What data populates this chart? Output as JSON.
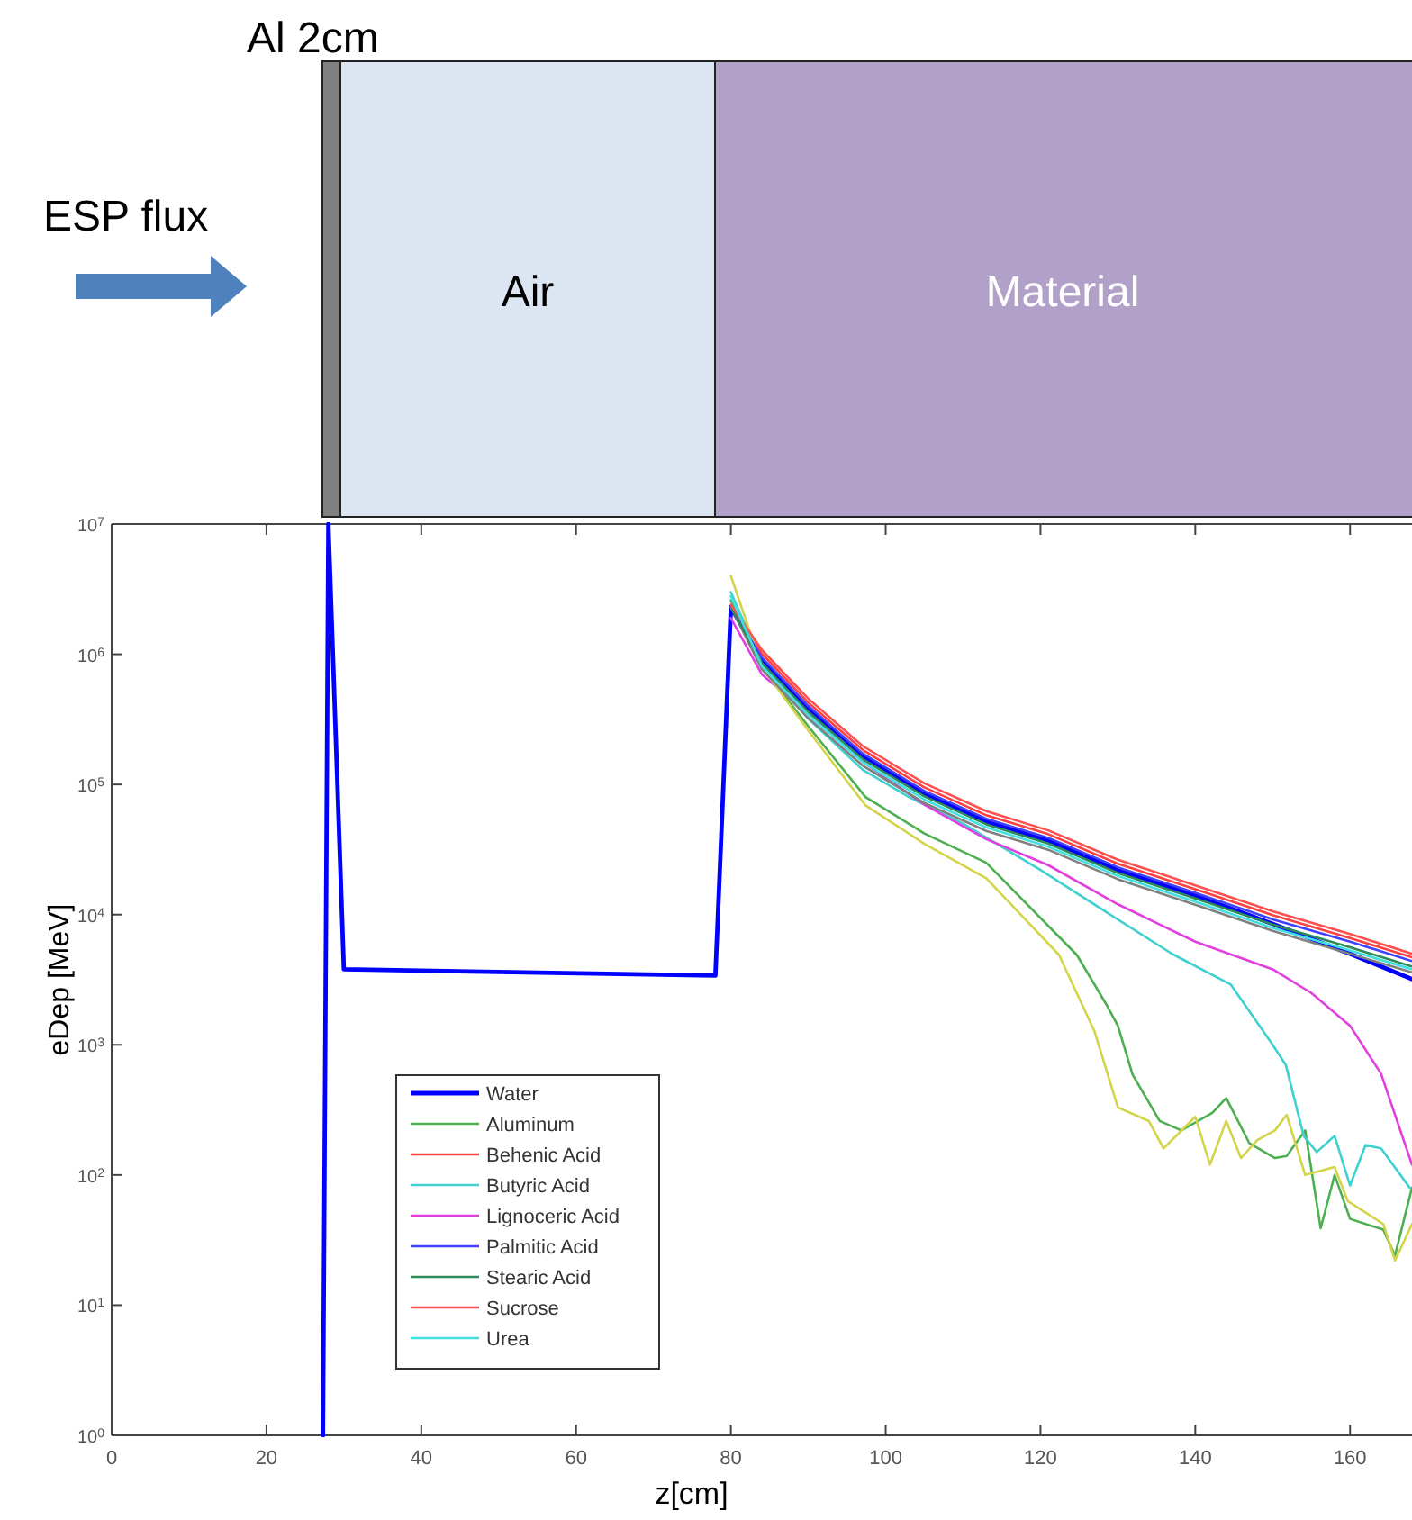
{
  "chart_data": {
    "type": "line",
    "xlabel": "z[cm]",
    "ylabel": "eDep [MeV]",
    "annotations": [
      "Al 2cm",
      "ESP flux",
      "Air",
      "Material"
    ],
    "log": "y",
    "grid": false,
    "legend": "bottom left",
    "xlim": [
      0,
      168
    ],
    "ylim": [
      1,
      10000000
    ],
    "xticks": [
      0,
      20,
      40,
      60,
      80,
      100,
      120,
      140,
      160
    ],
    "yticks": [
      {
        "value": 1,
        "label": "10$^{0}$"
      },
      {
        "value": 10,
        "label": "10$^{1}$"
      },
      {
        "value": 100,
        "label": "10$^{2}$"
      },
      {
        "value": 1000,
        "label": "10$^{3}$"
      },
      {
        "value": 10000,
        "label": "10$^{4}$"
      },
      {
        "value": 100000,
        "label": "10$^{5}$"
      },
      {
        "value": 1000000,
        "label": "10$^{6}$"
      },
      {
        "value": 10000000,
        "label": "10$^{7}$"
      }
    ],
    "x": [
      80,
      84,
      90,
      97,
      105,
      113,
      121,
      130,
      140,
      150,
      160,
      168
    ],
    "series": [
      {
        "name": "Water",
        "color": "#0000ff",
        "x": [
          27.3,
          28,
          30,
          78,
          80,
          84,
          90,
          97,
          105,
          113,
          121,
          130,
          140,
          150,
          160,
          168
        ],
        "values": [
          1,
          10000000,
          3800,
          3400,
          2300000,
          900000,
          380000,
          165000,
          85000,
          52000,
          37000,
          22000,
          14000,
          8500,
          5000,
          3200
        ]
      },
      {
        "name": "Aluminum",
        "color": "#4caf50",
        "x": [
          80,
          84,
          90,
          97.4,
          105,
          113,
          124.7,
          128.6,
          130,
          131.9,
          135.4,
          138.2,
          142.2,
          144,
          147,
          150.3,
          151.8,
          154.2,
          156.2,
          158,
          160,
          164.3,
          165.8,
          168
        ],
        "values": [
          2600000,
          800000,
          280000,
          80000,
          42000,
          25000,
          4900,
          2000,
          1400,
          590,
          260,
          220,
          300,
          390,
          175,
          135,
          140,
          220,
          39,
          100,
          46,
          38,
          24,
          80
        ]
      },
      {
        "name": "Behenic Acid",
        "color": "#ff4040",
        "values": [
          2300000,
          1010000,
          425000,
          185000,
          95000,
          58000,
          41500,
          24600,
          15700,
          9900,
          6600,
          4700
        ]
      },
      {
        "name": "Butyric Acid",
        "color": "#40d0d0",
        "x": [
          80,
          84,
          90,
          97,
          103,
          110,
          120,
          129,
          137,
          144.6,
          150,
          151.7,
          154,
          155.7,
          158,
          160,
          162,
          164,
          167.7
        ],
        "values": [
          3000000,
          850000,
          320000,
          130000,
          80000,
          50000,
          22000,
          10000,
          5000,
          2900,
          1000,
          700,
          200,
          150,
          200,
          83,
          170,
          160,
          80
        ]
      },
      {
        "name": "Lignoceric Acid",
        "color": "#e040e0",
        "x": [
          80,
          84,
          90,
          97,
          105,
          113,
          121,
          130,
          140,
          150,
          155,
          160,
          164,
          168
        ],
        "values": [
          1900000,
          700000,
          350000,
          150000,
          70000,
          38000,
          24000,
          12000,
          6200,
          3800,
          2500,
          1400,
          600,
          120
        ]
      },
      {
        "color": "#d4d44a",
        "x": [
          80,
          84,
          90,
          97.4,
          105,
          113,
          122.4,
          127,
          130,
          134,
          135.9,
          140,
          141.9,
          144,
          145.9,
          148,
          150.3,
          151.8,
          154.2,
          158,
          159.7,
          164.3,
          165.8,
          168
        ],
        "values": [
          4000000,
          800000,
          260000,
          69000,
          35000,
          19000,
          4900,
          1260,
          330,
          260,
          160,
          280,
          120,
          260,
          135,
          185,
          220,
          290,
          100,
          115,
          63,
          42,
          22,
          42
        ]
      },
      {
        "color": "#808080",
        "values": [
          2300000,
          765000,
          323000,
          140000,
          72000,
          44000,
          31500,
          18700,
          11900,
          7500,
          5000,
          3600
        ]
      },
      {
        "name": "Palmitic Acid",
        "color": "#4040ff",
        "values": [
          2300000,
          945000,
          400000,
          173000,
          89000,
          54600,
          38900,
          23100,
          14700,
          9200,
          6200,
          4400
        ]
      },
      {
        "name": "Stearic Acid",
        "color": "#2e8b57",
        "values": [
          2300000,
          855000,
          361000,
          157000,
          81000,
          49400,
          35200,
          20900,
          13300,
          8400,
          5600,
          4000
        ]
      },
      {
        "name": "Sucrose",
        "color": "#ff5050",
        "values": [
          2400000,
          1080000,
          456000,
          198000,
          102000,
          62400,
          44400,
          26400,
          16800,
          10600,
          7100,
          5000
        ]
      },
      {
        "name": "Urea",
        "color": "#40e0e0",
        "values": [
          2800000,
          810000,
          342000,
          149000,
          76500,
          46800,
          33300,
          19800,
          12600,
          7900,
          5300,
          3800
        ]
      }
    ]
  }
}
